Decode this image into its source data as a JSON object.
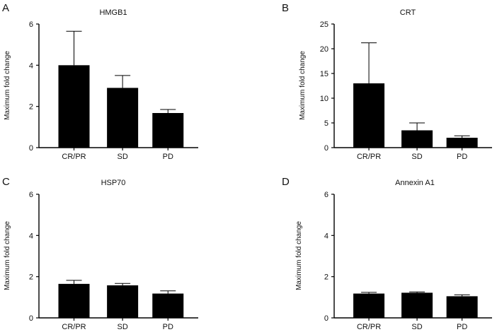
{
  "chart_data": [
    {
      "panel": "A",
      "type": "bar",
      "title": "HMGB1",
      "ylabel": "Maximum fold change",
      "categories": [
        "CR/PR",
        "SD",
        "PD"
      ],
      "values": [
        4.0,
        2.9,
        1.68
      ],
      "error_upper": [
        5.65,
        3.5,
        1.85
      ],
      "ylim": [
        0,
        6
      ],
      "yticks": [
        0,
        2,
        4,
        6
      ]
    },
    {
      "panel": "B",
      "type": "bar",
      "title": "CRT",
      "ylabel": "Maximum fold change",
      "categories": [
        "CR/PR",
        "SD",
        "PD"
      ],
      "values": [
        13,
        3.5,
        2.0
      ],
      "error_upper": [
        21.2,
        5.0,
        2.4
      ],
      "ylim": [
        0,
        25
      ],
      "yticks": [
        0,
        5,
        10,
        15,
        20,
        25
      ]
    },
    {
      "panel": "C",
      "type": "bar",
      "title": "HSP70",
      "ylabel": "Maximum fold change",
      "categories": [
        "CR/PR",
        "SD",
        "PD"
      ],
      "values": [
        1.65,
        1.58,
        1.18
      ],
      "error_upper": [
        1.82,
        1.67,
        1.31
      ],
      "ylim": [
        0,
        6
      ],
      "yticks": [
        0,
        2,
        4,
        6
      ]
    },
    {
      "panel": "D",
      "type": "bar",
      "title": "Annexin A1",
      "ylabel": "Maximum fold change",
      "categories": [
        "CR/PR",
        "SD",
        "PD"
      ],
      "values": [
        1.18,
        1.22,
        1.05
      ],
      "error_upper": [
        1.24,
        1.26,
        1.12
      ],
      "ylim": [
        0,
        6
      ],
      "yticks": [
        0,
        2,
        4,
        6
      ]
    }
  ]
}
